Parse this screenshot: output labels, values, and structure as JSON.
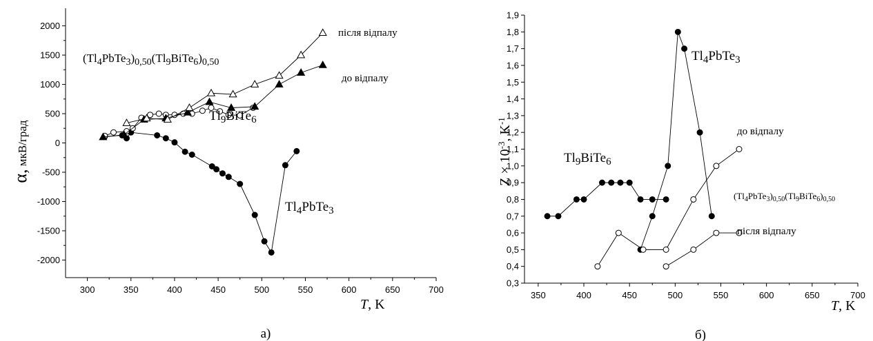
{
  "chart_data": [
    {
      "type": "scatter",
      "panel_label": "а)",
      "xlabel": {
        "italic": "T",
        "unit": ", K"
      },
      "ylabel": {
        "symbol": "α,",
        "unit": "мкВ/град"
      },
      "xlim": [
        275,
        700
      ],
      "ylim": [
        -2300,
        2300
      ],
      "xticks": [
        300,
        350,
        400,
        450,
        500,
        550,
        600,
        650,
        700
      ],
      "yticks": [
        -2000,
        -1500,
        -1000,
        -500,
        0,
        500,
        1000,
        1500,
        2000
      ],
      "series": [
        {
          "name": "Tl4PbTe3",
          "marker": "circle-filled",
          "x": [
            320,
            340,
            345,
            350,
            380,
            390,
            400,
            412,
            420,
            443,
            448,
            455,
            462,
            475,
            492,
            503,
            511,
            527,
            540
          ],
          "y": [
            110,
            130,
            80,
            180,
            130,
            80,
            10,
            -150,
            -200,
            -400,
            -450,
            -520,
            -580,
            -700,
            -1230,
            -1680,
            -1870,
            -380,
            -140
          ]
        },
        {
          "name": "Tl9BiTe6",
          "marker": "circle-open",
          "x": [
            320,
            330,
            345,
            352,
            362,
            372,
            382,
            390,
            400,
            410,
            420,
            432,
            442,
            452,
            462,
            475,
            490
          ],
          "y": [
            120,
            180,
            200,
            250,
            430,
            480,
            500,
            480,
            480,
            500,
            500,
            550,
            600,
            540,
            480,
            470,
            600
          ]
        },
        {
          "name": "(Tl4PbTe3)0,50(Tl9BiTe6)0,50 до відпалу",
          "marker": "triangle-filled",
          "x": [
            318,
            342,
            365,
            390,
            415,
            440,
            465,
            492,
            520,
            545,
            570
          ],
          "y": [
            100,
            140,
            400,
            420,
            520,
            700,
            600,
            620,
            1000,
            1200,
            1330
          ]
        },
        {
          "name": "(Tl4PbTe3)0,50(Tl9BiTe6)0,50 після відпалу",
          "marker": "triangle-open",
          "x": [
            345,
            368,
            392,
            417,
            442,
            467,
            492,
            520,
            545,
            570
          ],
          "y": [
            340,
            420,
            400,
            600,
            850,
            830,
            1000,
            1150,
            1500,
            1880
          ]
        }
      ],
      "annotations": [
        {
          "id": "compound",
          "parts": [
            [
              "(Tl",
              "n"
            ],
            [
              "4",
              "sub"
            ],
            [
              "PbTe",
              "n"
            ],
            [
              "3",
              "sub"
            ],
            [
              ")",
              "n"
            ],
            [
              "0,50",
              "sub"
            ],
            [
              "(Tl",
              "n"
            ],
            [
              "9",
              "sub"
            ],
            [
              "BiTe",
              "n"
            ],
            [
              "6",
              "sub"
            ],
            [
              ")",
              "n"
            ],
            [
              "0,50",
              "sub"
            ]
          ]
        },
        {
          "id": "after",
          "text": "після відпалу"
        },
        {
          "id": "before",
          "text": "до відпалу"
        },
        {
          "id": "tl9",
          "parts": [
            [
              "Tl",
              "n"
            ],
            [
              "9",
              "sub"
            ],
            [
              "BiTe",
              "n"
            ],
            [
              "6",
              "sub"
            ]
          ]
        },
        {
          "id": "tl4",
          "parts": [
            [
              "Tl",
              "n"
            ],
            [
              "4",
              "sub"
            ],
            [
              "PbTe",
              "n"
            ],
            [
              "3",
              "sub"
            ]
          ]
        }
      ]
    },
    {
      "type": "scatter",
      "panel_label": "б)",
      "xlabel": {
        "italic": "T",
        "unit": ", K"
      },
      "ylabel": {
        "symbol": "Z × 10",
        "exp": "-3",
        "unit": ", K",
        "unit_exp": "-1"
      },
      "xlim": [
        335,
        700
      ],
      "ylim": [
        0.3,
        1.9
      ],
      "xticks": [
        350,
        400,
        450,
        500,
        550,
        600,
        650,
        700
      ],
      "yticks": [
        "0,3",
        "0,4",
        "0,5",
        "0,6",
        "0,7",
        "0,8",
        "0,9",
        "1,0",
        "1,1",
        "1,2",
        "1,3",
        "1,4",
        "1,5",
        "1,6",
        "1,7",
        "1,8",
        "1,9"
      ],
      "series": [
        {
          "name": "Tl9BiTe6",
          "marker": "circle-filled",
          "x": [
            360,
            372,
            392,
            400,
            420,
            430,
            440,
            450,
            462,
            475,
            490
          ],
          "y": [
            0.7,
            0.7,
            0.8,
            0.8,
            0.9,
            0.9,
            0.9,
            0.9,
            0.8,
            0.8,
            0.8
          ]
        },
        {
          "name": "Tl4PbTe3",
          "marker": "circle-filled",
          "x": [
            462,
            475,
            492,
            503,
            510,
            527,
            540
          ],
          "y": [
            0.5,
            0.7,
            1.0,
            1.8,
            1.7,
            1.2,
            0.7
          ]
        },
        {
          "name": "(Tl4PbTe3)0,50(Tl9BiTe6)0,50 до відпалу",
          "marker": "circle-open",
          "x": [
            415,
            438,
            465,
            490,
            520,
            545,
            570
          ],
          "y": [
            0.4,
            0.6,
            0.5,
            0.5,
            0.8,
            1.0,
            1.1
          ]
        },
        {
          "name": "(Tl4PbTe3)0,50(Tl9BiTe6)0,50 після відпалу",
          "marker": "circle-open",
          "x": [
            490,
            520,
            545,
            570
          ],
          "y": [
            0.4,
            0.5,
            0.6,
            0.6
          ]
        }
      ],
      "annotations": [
        {
          "id": "tl4",
          "parts": [
            [
              "Tl",
              "n"
            ],
            [
              "4",
              "sub"
            ],
            [
              "PbTe",
              "n"
            ],
            [
              "3",
              "sub"
            ]
          ]
        },
        {
          "id": "before",
          "text": "до відпалу"
        },
        {
          "id": "tl9",
          "parts": [
            [
              "Tl",
              "n"
            ],
            [
              "9",
              "sub"
            ],
            [
              "BiTe",
              "n"
            ],
            [
              "6",
              "sub"
            ]
          ]
        },
        {
          "id": "compound",
          "parts": [
            [
              "(Tl",
              "n"
            ],
            [
              "4",
              "sub"
            ],
            [
              "PbTe",
              "n"
            ],
            [
              "3",
              "sub"
            ],
            [
              ")",
              "n"
            ],
            [
              "0,50",
              "sub"
            ],
            [
              "(Tl",
              "n"
            ],
            [
              "9",
              "sub"
            ],
            [
              "BiTe",
              "n"
            ],
            [
              "6",
              "sub"
            ],
            [
              ")",
              "n"
            ],
            [
              "0,50",
              "sub"
            ]
          ]
        },
        {
          "id": "after",
          "text": "після відпалу"
        }
      ]
    }
  ]
}
